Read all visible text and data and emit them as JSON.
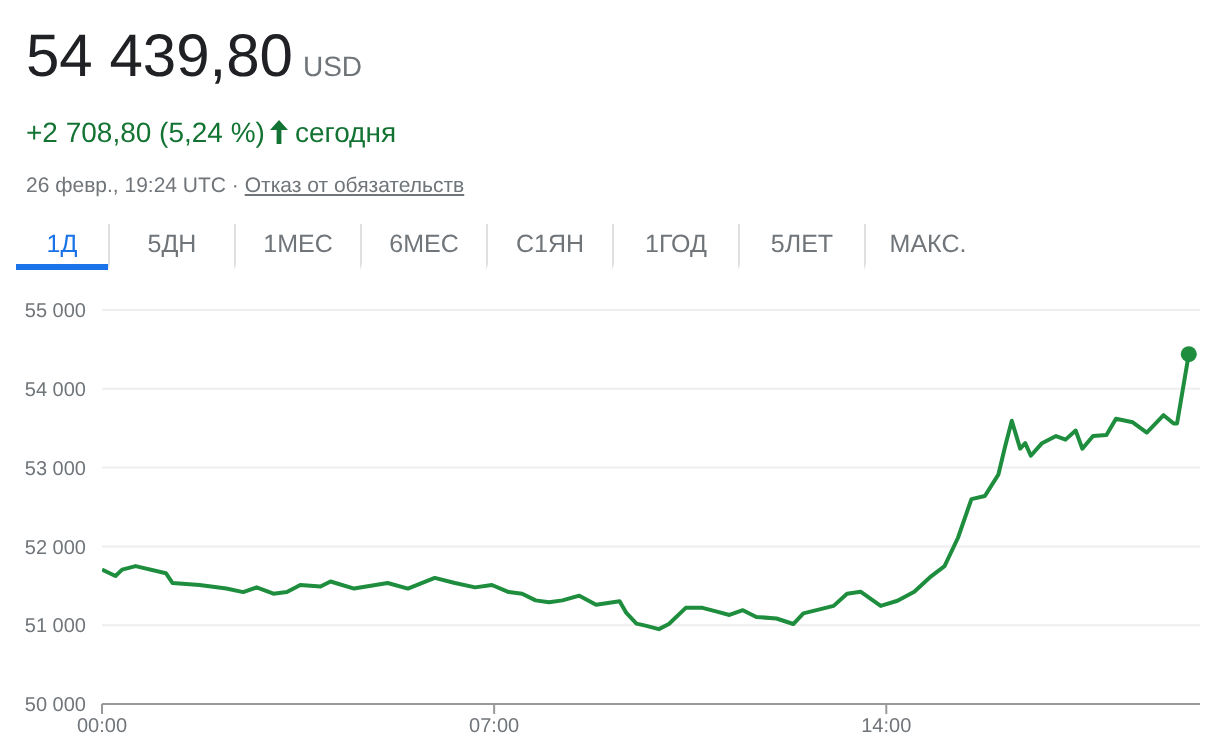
{
  "chart_data": {
    "type": "line",
    "title": "54 439,80",
    "subtitle": "+2 708,80 (5,24 %)",
    "annotations": [
      "USD",
      "сегодня",
      "26 февр., 19:24 UTC ·",
      "Отказ от обязательств",
      "1Д",
      "5ДН",
      "1МЕС",
      "6МЕС",
      "С1ЯН",
      "1ГОД",
      "5ЛЕТ",
      "МАКС."
    ],
    "xlim": [
      0,
      19.6
    ],
    "xticks": [
      {
        "value": 0,
        "label": "00:00"
      },
      {
        "value": 7,
        "label": "07:00"
      },
      {
        "value": 14,
        "label": "14:00"
      }
    ],
    "ylim": [
      50000,
      55000
    ],
    "yticks": [
      {
        "value": 50000,
        "label": "50 000"
      },
      {
        "value": 51000,
        "label": "51 000"
      },
      {
        "value": 52000,
        "label": "52 000"
      },
      {
        "value": 53000,
        "label": "53 000"
      },
      {
        "value": 54000,
        "label": "54 000"
      },
      {
        "value": 55000,
        "label": "55 000"
      }
    ],
    "grid": "y",
    "series": [
      {
        "color": "#1e8e3e",
        "x": [
          0,
          0.24,
          0.36,
          0.6,
          1.14,
          1.26,
          1.74,
          2.22,
          2.52,
          2.76,
          3.06,
          3.3,
          3.54,
          3.9,
          4.08,
          4.5,
          5.1,
          5.46,
          5.94,
          6.3,
          6.66,
          6.96,
          7.26,
          7.5,
          7.74,
          7.98,
          8.22,
          8.52,
          8.82,
          9.24,
          9.36,
          9.54,
          9.7,
          9.94,
          10.12,
          10.42,
          10.72,
          10.96,
          11.2,
          11.44,
          11.68,
          12.04,
          12.34,
          12.52,
          13.06,
          13.3,
          13.54,
          13.9,
          14.2,
          14.5,
          14.8,
          15.04,
          15.28,
          15.52,
          15.76,
          16.0,
          16.12,
          16.24,
          16.39,
          16.48,
          16.58,
          16.78,
          17.03,
          17.2,
          17.38,
          17.5,
          17.69,
          17.93,
          18.1,
          18.4,
          18.65,
          18.95,
          19.13,
          19.19,
          19.4
        ],
        "values": [
          51705,
          51625,
          51705,
          51750,
          51660,
          51535,
          51510,
          51465,
          51420,
          51480,
          51400,
          51420,
          51510,
          51490,
          51555,
          51465,
          51535,
          51465,
          51600,
          51535,
          51480,
          51510,
          51420,
          51400,
          51315,
          51290,
          51315,
          51375,
          51260,
          51305,
          51155,
          51020,
          50995,
          50950,
          51015,
          51220,
          51220,
          51175,
          51130,
          51190,
          51105,
          51085,
          51015,
          51150,
          51245,
          51400,
          51425,
          51245,
          51310,
          51425,
          51620,
          51750,
          52110,
          52600,
          52640,
          52910,
          53265,
          53595,
          53240,
          53310,
          53150,
          53310,
          53400,
          53355,
          53470,
          53240,
          53400,
          53415,
          53620,
          53575,
          53445,
          53665,
          53560,
          53560,
          54439.8
        ]
      },
      {
        "type": "scatter",
        "color": "#1e8e3e",
        "x": [
          19.4
        ],
        "values": [
          54439.8
        ]
      }
    ]
  }
}
